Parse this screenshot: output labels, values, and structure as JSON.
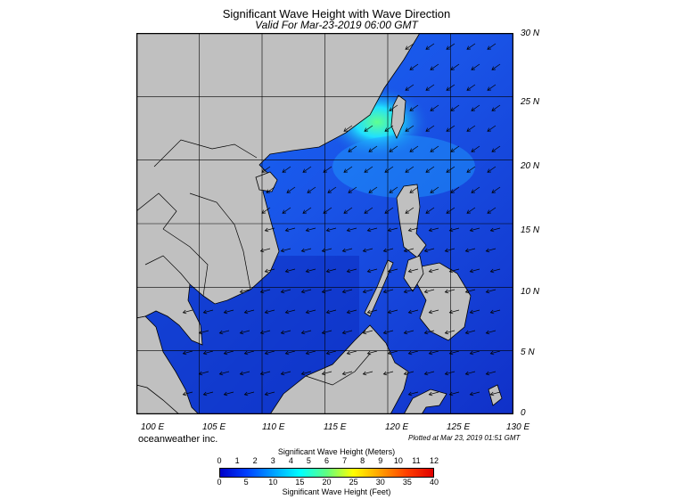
{
  "title": "Significant Wave Height with Wave Direction",
  "subtitle": "Valid For Mar-23-2019 06:00 GMT",
  "lat_labels": [
    "30 N",
    "25 N",
    "20 N",
    "15 N",
    "10 N",
    "5 N",
    "0"
  ],
  "lon_labels": [
    "100 E",
    "105 E",
    "110 E",
    "115 E",
    "120 E",
    "125 E",
    "130 E"
  ],
  "brand": "oceanweather inc.",
  "plotted": "Plotted at Mar 23, 2019 01:51 GMT",
  "colorbar": {
    "title_meters": "Significant Wave Height (Meters)",
    "title_feet": "Significant Wave Height (Feet)",
    "meters_ticks": [
      "0",
      "1",
      "2",
      "3",
      "4",
      "5",
      "6",
      "7",
      "8",
      "9",
      "10",
      "11",
      "12"
    ],
    "feet_ticks": [
      "0",
      "5",
      "10",
      "15",
      "20",
      "25",
      "30",
      "35",
      "40"
    ],
    "colors": [
      "#0000c8",
      "#0040ff",
      "#00a0ff",
      "#00ffff",
      "#60ff80",
      "#ffff00",
      "#ffa000",
      "#ff4000",
      "#e00000"
    ]
  },
  "map": {
    "lon_range": [
      100,
      130
    ],
    "lat_range": [
      0,
      30
    ],
    "land_color": "#c0c0c0",
    "sea_base_color": "#1a4fe0",
    "max_wave_color": "#5fff9a"
  }
}
